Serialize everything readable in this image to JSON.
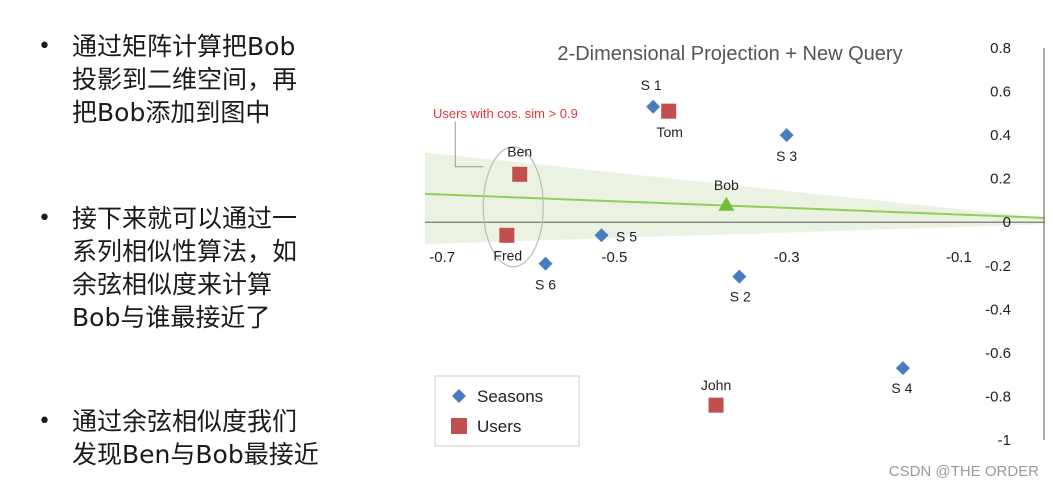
{
  "bullets": [
    {
      "text": "通过矩阵计算把Bob\n投影到二维空间，再\n把Bob添加到图中"
    },
    {
      "text": "接下来就可以通过一\n系列相似性算法，如\n余弦相似度来计算\nBob与谁最接近了"
    },
    {
      "text": "通过余弦相似度我们\n发现Ben与Bob最接近"
    }
  ],
  "bullet_symbol": "•",
  "watermark": "CSDN @THE ORDER",
  "chart_data": {
    "type": "scatter",
    "title": "2-Dimensional Projection + New Query",
    "xlim": [
      -0.72,
      0.0
    ],
    "ylim": [
      -1.0,
      0.8
    ],
    "x_ticks": [
      -0.7,
      -0.5,
      -0.3,
      -0.1
    ],
    "x_tick_labels": [
      "-0.7",
      "-0.5",
      "-0.3",
      "-0.1"
    ],
    "y_ticks": [
      0.8,
      0.6,
      0.4,
      0.2,
      0,
      -0.2,
      -0.4,
      -0.6,
      -0.8,
      -1
    ],
    "y_tick_labels": [
      "0.8",
      "0.6",
      "0.4",
      "0.2",
      "0",
      "-0.2",
      "-0.4",
      "-0.6",
      "-0.8",
      "-1"
    ],
    "series": [
      {
        "name": "Seasons",
        "marker": "diamond",
        "color": "#4a7bc0",
        "points": [
          {
            "label": "S 1",
            "x": -0.455,
            "y": 0.53
          },
          {
            "label": "S 2",
            "x": -0.355,
            "y": -0.25
          },
          {
            "label": "S 3",
            "x": -0.3,
            "y": 0.4
          },
          {
            "label": "S 4",
            "x": -0.165,
            "y": -0.67
          },
          {
            "label": "S 5",
            "x": -0.515,
            "y": -0.06
          },
          {
            "label": "S 6",
            "x": -0.58,
            "y": -0.19
          }
        ]
      },
      {
        "name": "Users",
        "marker": "square",
        "color": "#c0504d",
        "points": [
          {
            "label": "Tom",
            "x": -0.437,
            "y": 0.51
          },
          {
            "label": "Ben",
            "x": -0.61,
            "y": 0.22
          },
          {
            "label": "Fred",
            "x": -0.625,
            "y": -0.06
          },
          {
            "label": "John",
            "x": -0.382,
            "y": -0.84
          }
        ]
      }
    ],
    "query": {
      "label": "Bob",
      "x": -0.37,
      "y": 0.08,
      "color": "#6fbf3a"
    },
    "annotation": {
      "text": "Users with cos. sim > 0.9",
      "color": "#e8353a"
    },
    "legend": [
      "Seasons",
      "Users"
    ],
    "legend_position": "bottom-left",
    "grid": false
  }
}
